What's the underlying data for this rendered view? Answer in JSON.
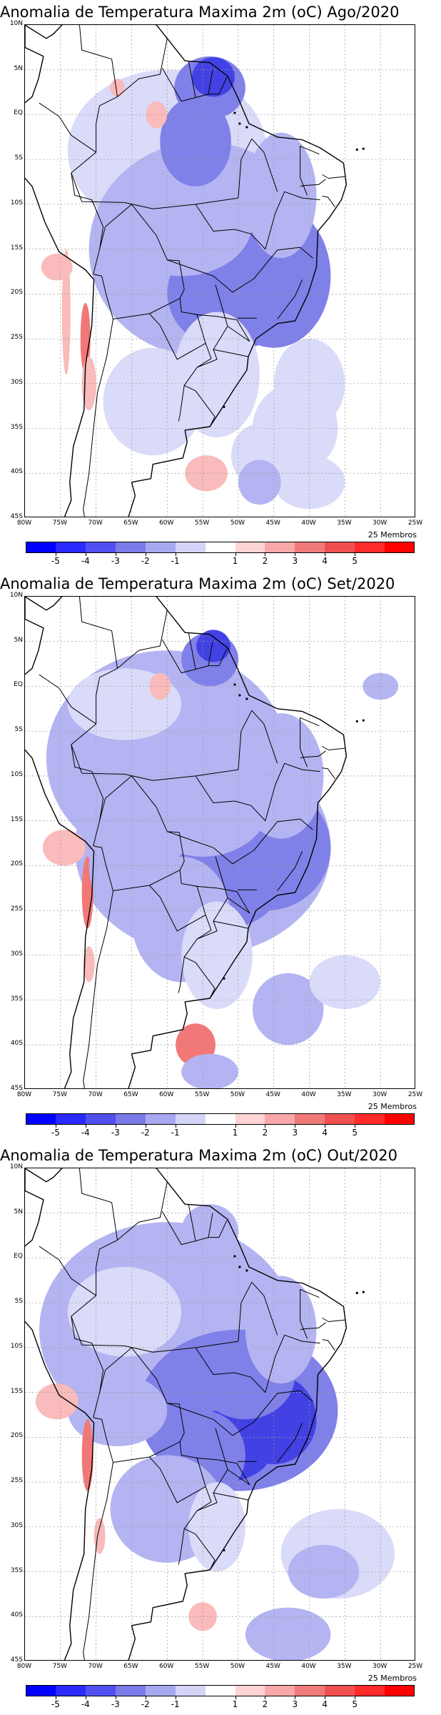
{
  "panels": [
    {
      "title": "Anomalia de Temperatura Maxima 2m (oC) Ago/2020",
      "scheme": "ago"
    },
    {
      "title": "Anomalia de Temperatura Maxima 2m (oC) Set/2020",
      "scheme": "set"
    },
    {
      "title": "Anomalia de Temperatura Maxima 2m (oC) Out/2020",
      "scheme": "out"
    }
  ],
  "members_label": "25 Membros",
  "lat_labels": [
    "10N",
    "5N",
    "EQ",
    "5S",
    "10S",
    "15S",
    "20S",
    "25S",
    "30S",
    "35S",
    "40S",
    "45S"
  ],
  "lon_labels": [
    "80W",
    "75W",
    "70W",
    "65W",
    "60W",
    "55W",
    "50W",
    "45W",
    "40W",
    "35W",
    "30W",
    "25W"
  ],
  "colorbar": {
    "labels": [
      "-5",
      "-4",
      "-3",
      "-2",
      "-1",
      "1",
      "2",
      "3",
      "4",
      "5"
    ],
    "colors": [
      "#0000ff",
      "#2a2aff",
      "#5050f0",
      "#7a7ae8",
      "#a8a8f0",
      "#d4d4f8",
      "#ffffff",
      "#ffd4d4",
      "#f8a8a8",
      "#f07a7a",
      "#f05050",
      "#ff2a2a",
      "#ff0000"
    ]
  },
  "colors": {
    "strong_blue": "#2020e0",
    "mid_blue": "#6a6ae6",
    "light_blue": "#a8a8f0",
    "pale_blue": "#d4d4f8",
    "light_red": "#f8b0b0",
    "mid_red": "#f06060",
    "coast": "#000000",
    "grid": "#9a9a9a"
  }
}
